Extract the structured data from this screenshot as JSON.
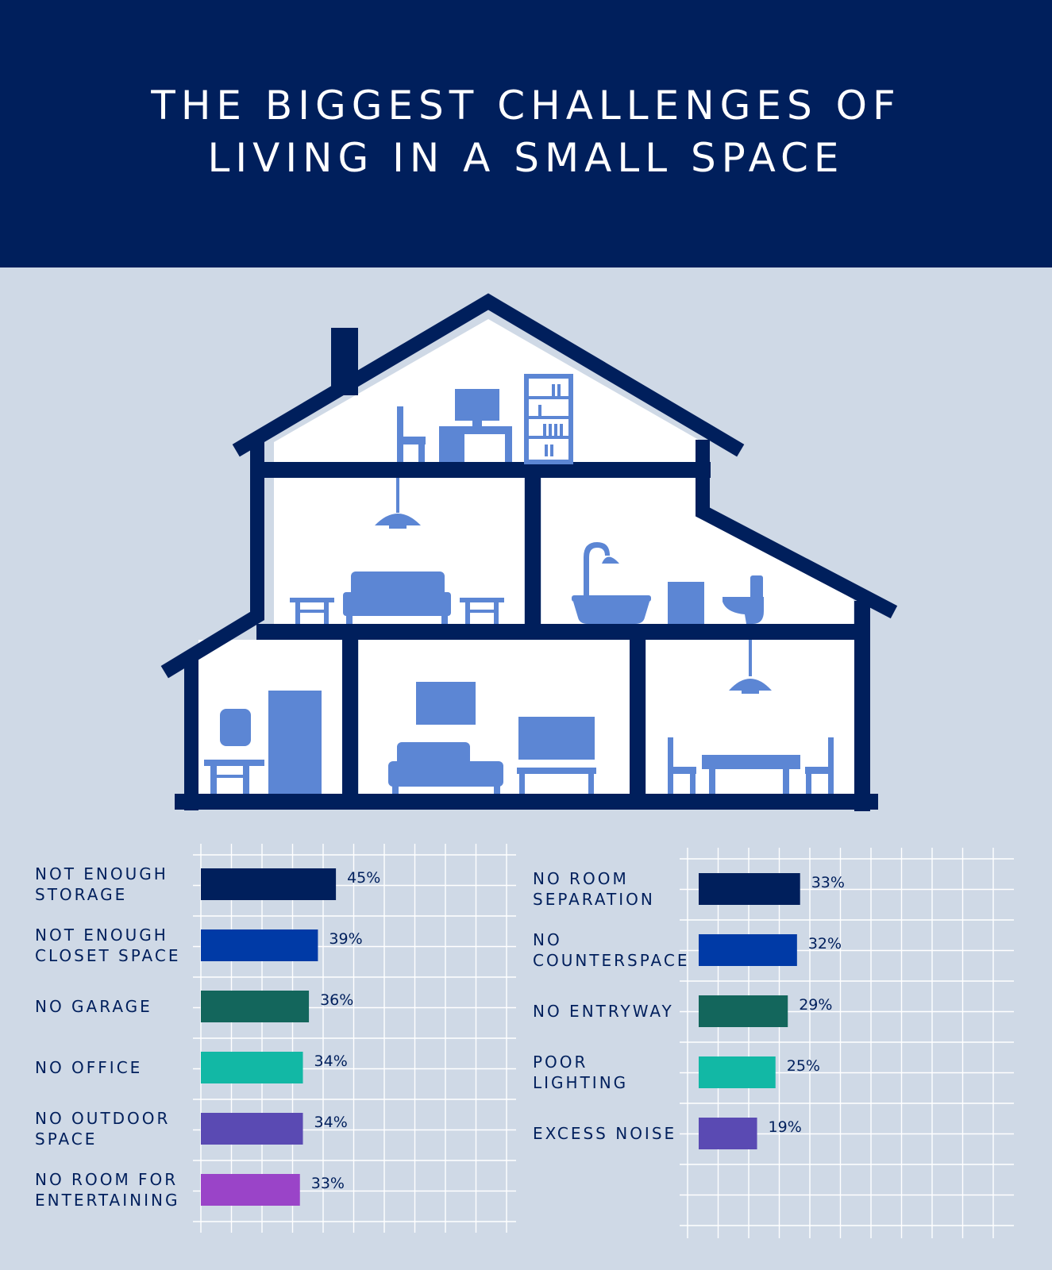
{
  "title": {
    "line1": "THE BIGGEST CHALLENGES OF",
    "line2": "LIVING IN A SMALL SPACE"
  },
  "colors": {
    "header_bg": "#001f5c",
    "page_bg": "#cfd9e6",
    "house_frame": "#001f5c",
    "furniture": "#5c86d4"
  },
  "chart_data": [
    {
      "type": "bar",
      "orientation": "horizontal",
      "grid": true,
      "xlim": [
        0,
        100
      ],
      "categories": [
        [
          "NOT ENOUGH",
          "STORAGE"
        ],
        [
          "NOT ENOUGH",
          "CLOSET SPACE"
        ],
        [
          "NO GARAGE"
        ],
        [
          "NO OFFICE"
        ],
        [
          "NO OUTDOOR",
          "SPACE"
        ],
        [
          "NO ROOM FOR",
          "ENTERTAINING"
        ]
      ],
      "values": [
        45,
        39,
        36,
        34,
        34,
        33
      ],
      "value_labels": [
        "45%",
        "39%",
        "36%",
        "34%",
        "34%",
        "33%"
      ],
      "bar_colors": [
        "#001f5c",
        "#003aa6",
        "#13665c",
        "#12b8a5",
        "#5a4ab3",
        "#9a44c8"
      ]
    },
    {
      "type": "bar",
      "orientation": "horizontal",
      "grid": true,
      "xlim": [
        0,
        100
      ],
      "categories": [
        [
          "NO ROOM",
          "SEPARATION"
        ],
        [
          "NO",
          "COUNTERSPACE"
        ],
        [
          "NO ENTRYWAY"
        ],
        [
          "POOR",
          "LIGHTING"
        ],
        [
          "EXCESS NOISE"
        ]
      ],
      "values": [
        33,
        32,
        29,
        25,
        19
      ],
      "value_labels": [
        "33%",
        "32%",
        "29%",
        "25%",
        "19%"
      ],
      "bar_colors": [
        "#001f5c",
        "#003aa6",
        "#13665c",
        "#12b8a5",
        "#5a4ab3"
      ]
    }
  ]
}
